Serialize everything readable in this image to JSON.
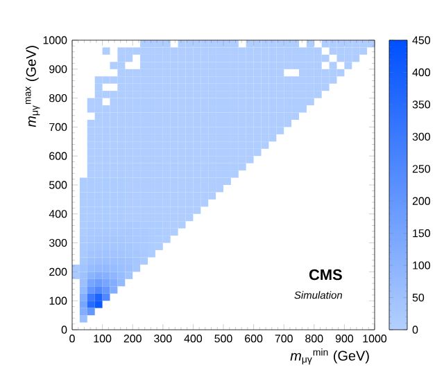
{
  "chart_data": {
    "type": "heatmap",
    "xlabel": "*m*$_{μγ}$$^{min}$ (GeV)",
    "ylabel": "*m*$_{μγ}$$^{max}$ (GeV)",
    "annotations": [
      "CMS",
      "Simulation"
    ],
    "x": [
      12.5,
      37.5,
      62.5,
      87.5,
      112.5,
      137.5,
      162.5,
      187.5,
      212.5,
      237.5,
      262.5,
      287.5,
      312.5,
      337.5,
      362.5,
      387.5,
      412.5,
      437.5,
      462.5,
      487.5,
      512.5,
      537.5,
      562.5,
      587.5,
      612.5,
      637.5,
      662.5,
      687.5,
      712.5,
      737.5,
      762.5,
      787.5,
      812.5,
      837.5,
      862.5,
      887.5,
      912.5,
      937.5,
      962.5,
      987.5
    ],
    "y": [
      987.5,
      962.5,
      937.5,
      912.5,
      887.5,
      862.5,
      837.5,
      812.5,
      787.5,
      762.5,
      737.5,
      712.5,
      687.5,
      662.5,
      637.5,
      612.5,
      587.5,
      562.5,
      537.5,
      512.5,
      487.5,
      462.5,
      437.5,
      412.5,
      387.5,
      362.5,
      337.5,
      312.5,
      287.5,
      262.5,
      237.5,
      212.5,
      187.5,
      162.5,
      137.5,
      112.5,
      87.5,
      62.5,
      37.5
    ],
    "xlim": [
      0,
      1000
    ],
    "ylim": [
      0,
      1000
    ],
    "xticks": [
      0,
      100,
      200,
      300,
      400,
      500,
      600,
      700,
      800,
      900,
      1000
    ],
    "yticks": [
      0,
      100,
      200,
      300,
      400,
      500,
      600,
      700,
      800,
      900,
      1000
    ],
    "clim": [
      0,
      450
    ],
    "cticks": [
      0,
      50,
      100,
      150,
      200,
      250,
      300,
      350,
      400,
      450
    ],
    "cells": [
      [
        null,
        null,
        null,
        null,
        null,
        null,
        null,
        null,
        null,
        10,
        10,
        10,
        10,
        null,
        10,
        10,
        10,
        10,
        10,
        10,
        10,
        10,
        null,
        10,
        10,
        10,
        10,
        10,
        10,
        10,
        null,
        10,
        null,
        10,
        10,
        10,
        10,
        10,
        10,
        10
      ],
      [
        null,
        null,
        null,
        null,
        10,
        null,
        10,
        10,
        10,
        10,
        10,
        10,
        10,
        10,
        10,
        10,
        10,
        10,
        10,
        10,
        10,
        10,
        10,
        10,
        10,
        10,
        10,
        10,
        10,
        10,
        10,
        10,
        10,
        null,
        10,
        10,
        10,
        10,
        10,
        null
      ],
      [
        null,
        null,
        null,
        null,
        null,
        null,
        10,
        10,
        null,
        10,
        10,
        10,
        10,
        10,
        10,
        10,
        10,
        10,
        10,
        10,
        10,
        10,
        10,
        10,
        10,
        10,
        10,
        10,
        10,
        10,
        10,
        10,
        10,
        10,
        null,
        10,
        10,
        10,
        null,
        null
      ],
      [
        null,
        null,
        null,
        null,
        null,
        10,
        10,
        null,
        null,
        10,
        10,
        10,
        10,
        10,
        10,
        10,
        10,
        10,
        10,
        10,
        10,
        10,
        10,
        10,
        10,
        10,
        10,
        10,
        10,
        10,
        10,
        10,
        10,
        null,
        10,
        null,
        10,
        null,
        null,
        null
      ],
      [
        null,
        null,
        null,
        null,
        null,
        null,
        10,
        10,
        10,
        10,
        10,
        10,
        10,
        10,
        10,
        10,
        10,
        10,
        10,
        10,
        10,
        10,
        10,
        10,
        10,
        10,
        10,
        10,
        null,
        null,
        10,
        10,
        10,
        10,
        10,
        10,
        null,
        null,
        null,
        null
      ],
      [
        null,
        null,
        null,
        10,
        10,
        10,
        10,
        10,
        10,
        10,
        10,
        10,
        10,
        10,
        10,
        10,
        10,
        10,
        10,
        10,
        10,
        10,
        10,
        10,
        10,
        10,
        10,
        10,
        10,
        10,
        10,
        10,
        10,
        10,
        10,
        null,
        null,
        null,
        null,
        null
      ],
      [
        null,
        null,
        null,
        10,
        null,
        null,
        10,
        10,
        10,
        10,
        10,
        10,
        10,
        10,
        10,
        10,
        10,
        10,
        10,
        10,
        10,
        10,
        10,
        10,
        10,
        10,
        10,
        10,
        10,
        10,
        10,
        10,
        10,
        10,
        null,
        null,
        null,
        null,
        null,
        null
      ],
      [
        null,
        null,
        null,
        10,
        10,
        10,
        10,
        10,
        10,
        10,
        10,
        10,
        10,
        10,
        10,
        10,
        10,
        10,
        10,
        10,
        10,
        10,
        10,
        10,
        10,
        10,
        10,
        10,
        10,
        10,
        10,
        10,
        10,
        null,
        null,
        null,
        null,
        null,
        null,
        null
      ],
      [
        null,
        null,
        10,
        10,
        null,
        10,
        10,
        10,
        10,
        10,
        10,
        10,
        10,
        10,
        10,
        10,
        10,
        10,
        10,
        10,
        10,
        10,
        10,
        10,
        10,
        10,
        10,
        10,
        10,
        10,
        10,
        10,
        null,
        null,
        null,
        null,
        null,
        null,
        null,
        null
      ],
      [
        null,
        null,
        10,
        10,
        10,
        10,
        10,
        10,
        10,
        10,
        10,
        10,
        10,
        10,
        10,
        10,
        10,
        10,
        10,
        10,
        10,
        10,
        10,
        10,
        10,
        10,
        10,
        10,
        10,
        10,
        10,
        null,
        null,
        null,
        null,
        null,
        null,
        null,
        null,
        null
      ],
      [
        null,
        null,
        null,
        10,
        10,
        10,
        10,
        10,
        10,
        10,
        10,
        10,
        10,
        10,
        10,
        10,
        10,
        10,
        10,
        10,
        10,
        10,
        10,
        10,
        10,
        10,
        10,
        10,
        10,
        10,
        null,
        null,
        null,
        null,
        null,
        null,
        null,
        null,
        null,
        null
      ],
      [
        null,
        null,
        10,
        10,
        10,
        10,
        10,
        10,
        10,
        10,
        10,
        10,
        10,
        10,
        10,
        10,
        10,
        10,
        10,
        10,
        10,
        10,
        10,
        10,
        10,
        10,
        10,
        10,
        10,
        null,
        null,
        null,
        null,
        null,
        null,
        null,
        null,
        null,
        null,
        null
      ],
      [
        null,
        null,
        10,
        10,
        10,
        10,
        10,
        10,
        10,
        10,
        10,
        10,
        10,
        10,
        10,
        10,
        10,
        10,
        10,
        10,
        10,
        10,
        10,
        10,
        10,
        10,
        10,
        10,
        null,
        null,
        null,
        null,
        null,
        null,
        null,
        null,
        null,
        null,
        null,
        null
      ],
      [
        null,
        null,
        10,
        10,
        10,
        10,
        10,
        10,
        10,
        10,
        10,
        10,
        10,
        10,
        10,
        10,
        10,
        10,
        10,
        10,
        10,
        10,
        10,
        10,
        10,
        10,
        10,
        null,
        null,
        null,
        null,
        null,
        null,
        null,
        null,
        null,
        null,
        null,
        null,
        null
      ],
      [
        null,
        null,
        10,
        10,
        10,
        10,
        10,
        10,
        10,
        10,
        10,
        10,
        10,
        10,
        10,
        10,
        10,
        10,
        10,
        10,
        10,
        10,
        10,
        10,
        10,
        10,
        null,
        null,
        null,
        null,
        null,
        null,
        null,
        null,
        null,
        null,
        null,
        null,
        null,
        null
      ],
      [
        null,
        null,
        10,
        10,
        10,
        10,
        10,
        10,
        10,
        10,
        10,
        10,
        10,
        10,
        10,
        10,
        10,
        10,
        10,
        10,
        10,
        10,
        10,
        10,
        10,
        null,
        null,
        null,
        null,
        null,
        null,
        null,
        null,
        null,
        null,
        null,
        null,
        null,
        null,
        null
      ],
      [
        null,
        null,
        10,
        10,
        10,
        10,
        10,
        10,
        10,
        10,
        10,
        10,
        10,
        10,
        10,
        10,
        10,
        10,
        10,
        10,
        10,
        10,
        10,
        10,
        null,
        null,
        null,
        null,
        null,
        null,
        null,
        null,
        null,
        null,
        null,
        null,
        null,
        null,
        null,
        null
      ],
      [
        null,
        null,
        10,
        10,
        10,
        10,
        10,
        10,
        10,
        10,
        10,
        10,
        10,
        10,
        10,
        10,
        10,
        10,
        10,
        10,
        10,
        10,
        10,
        null,
        null,
        null,
        null,
        null,
        null,
        null,
        null,
        null,
        null,
        null,
        null,
        null,
        null,
        null,
        null,
        null
      ],
      [
        null,
        null,
        10,
        10,
        10,
        10,
        10,
        10,
        10,
        10,
        10,
        10,
        10,
        10,
        10,
        10,
        10,
        10,
        10,
        10,
        10,
        10,
        null,
        null,
        null,
        null,
        null,
        null,
        null,
        null,
        null,
        null,
        null,
        null,
        null,
        null,
        null,
        null,
        null,
        null
      ],
      [
        null,
        15,
        15,
        15,
        15,
        15,
        15,
        10,
        10,
        10,
        10,
        10,
        10,
        10,
        10,
        10,
        10,
        10,
        10,
        10,
        10,
        null,
        null,
        null,
        null,
        null,
        null,
        null,
        null,
        null,
        null,
        null,
        null,
        null,
        null,
        null,
        null,
        null,
        null,
        null
      ],
      [
        null,
        15,
        15,
        15,
        15,
        15,
        15,
        10,
        10,
        10,
        10,
        10,
        10,
        10,
        10,
        10,
        10,
        10,
        10,
        10,
        null,
        null,
        null,
        null,
        null,
        null,
        null,
        null,
        null,
        null,
        null,
        null,
        null,
        null,
        null,
        null,
        null,
        null,
        null,
        null
      ],
      [
        null,
        15,
        15,
        15,
        15,
        15,
        15,
        10,
        10,
        10,
        10,
        10,
        10,
        10,
        10,
        10,
        10,
        10,
        10,
        null,
        null,
        null,
        null,
        null,
        null,
        null,
        null,
        null,
        null,
        null,
        null,
        null,
        null,
        null,
        null,
        null,
        null,
        null,
        null,
        null
      ],
      [
        null,
        15,
        15,
        15,
        15,
        15,
        15,
        10,
        10,
        10,
        10,
        10,
        10,
        10,
        10,
        10,
        10,
        10,
        null,
        null,
        null,
        null,
        null,
        null,
        null,
        null,
        null,
        null,
        null,
        null,
        null,
        null,
        null,
        null,
        null,
        null,
        null,
        null,
        null,
        null
      ],
      [
        null,
        15,
        15,
        15,
        15,
        15,
        15,
        10,
        10,
        10,
        10,
        10,
        10,
        10,
        10,
        10,
        10,
        null,
        null,
        null,
        null,
        null,
        null,
        null,
        null,
        null,
        null,
        null,
        null,
        null,
        null,
        null,
        null,
        null,
        null,
        null,
        null,
        null,
        null,
        null
      ],
      [
        null,
        15,
        15,
        15,
        15,
        15,
        15,
        10,
        10,
        10,
        10,
        10,
        10,
        10,
        10,
        10,
        null,
        null,
        null,
        null,
        null,
        null,
        null,
        null,
        null,
        null,
        null,
        null,
        null,
        null,
        null,
        null,
        null,
        null,
        null,
        null,
        null,
        null,
        null,
        null
      ],
      [
        null,
        15,
        20,
        20,
        20,
        20,
        20,
        20,
        20,
        15,
        15,
        15,
        10,
        10,
        10,
        null,
        null,
        null,
        null,
        null,
        null,
        null,
        null,
        null,
        null,
        null,
        null,
        null,
        null,
        null,
        null,
        null,
        null,
        null,
        null,
        null,
        null,
        null,
        null,
        null
      ],
      [
        null,
        15,
        25,
        25,
        25,
        25,
        25,
        25,
        20,
        20,
        15,
        15,
        10,
        10,
        null,
        null,
        null,
        null,
        null,
        null,
        null,
        null,
        null,
        null,
        null,
        null,
        null,
        null,
        null,
        null,
        null,
        null,
        null,
        null,
        null,
        null,
        null,
        null,
        null,
        null
      ],
      [
        null,
        20,
        25,
        30,
        30,
        30,
        30,
        25,
        25,
        20,
        15,
        10,
        10,
        null,
        null,
        null,
        null,
        null,
        null,
        null,
        null,
        null,
        null,
        null,
        null,
        null,
        null,
        null,
        null,
        null,
        null,
        null,
        null,
        null,
        null,
        null,
        null,
        null,
        null,
        null
      ],
      [
        null,
        20,
        30,
        35,
        35,
        35,
        35,
        30,
        25,
        20,
        15,
        10,
        null,
        null,
        null,
        null,
        null,
        null,
        null,
        null,
        null,
        null,
        null,
        null,
        null,
        null,
        null,
        null,
        null,
        null,
        null,
        null,
        null,
        null,
        null,
        null,
        null,
        null,
        null,
        null
      ],
      [
        null,
        25,
        40,
        45,
        45,
        45,
        40,
        35,
        30,
        25,
        15,
        null,
        null,
        null,
        null,
        null,
        null,
        null,
        null,
        null,
        null,
        null,
        null,
        null,
        null,
        null,
        null,
        null,
        null,
        null,
        null,
        null,
        null,
        null,
        null,
        null,
        null,
        null,
        null,
        null
      ],
      [
        null,
        30,
        50,
        60,
        60,
        55,
        50,
        45,
        35,
        20,
        null,
        null,
        null,
        null,
        null,
        null,
        null,
        null,
        null,
        null,
        null,
        null,
        null,
        null,
        null,
        null,
        null,
        null,
        null,
        null,
        null,
        null,
        null,
        null,
        null,
        null,
        null,
        null,
        null,
        null
      ],
      [
        20,
        40,
        70,
        80,
        80,
        70,
        60,
        50,
        30,
        null,
        null,
        null,
        null,
        null,
        null,
        null,
        null,
        null,
        null,
        null,
        null,
        null,
        null,
        null,
        null,
        null,
        null,
        null,
        null,
        null,
        null,
        null,
        null,
        null,
        null,
        null,
        null,
        null,
        null,
        null
      ],
      [
        20,
        50,
        100,
        120,
        110,
        90,
        70,
        40,
        null,
        null,
        null,
        null,
        null,
        null,
        null,
        null,
        null,
        null,
        null,
        null,
        null,
        null,
        null,
        null,
        null,
        null,
        null,
        null,
        null,
        null,
        null,
        null,
        null,
        null,
        null,
        null,
        null,
        null,
        null,
        null
      ],
      [
        null,
        60,
        150,
        180,
        150,
        120,
        80,
        null,
        null,
        null,
        null,
        null,
        null,
        null,
        null,
        null,
        null,
        null,
        null,
        null,
        null,
        null,
        null,
        null,
        null,
        null,
        null,
        null,
        null,
        null,
        null,
        null,
        null,
        null,
        null,
        null,
        null,
        null,
        null,
        null
      ],
      [
        null,
        80,
        200,
        250,
        200,
        120,
        null,
        null,
        null,
        null,
        null,
        null,
        null,
        null,
        null,
        null,
        null,
        null,
        null,
        null,
        null,
        null,
        null,
        null,
        null,
        null,
        null,
        null,
        null,
        null,
        null,
        null,
        null,
        null,
        null,
        null,
        null,
        null,
        null,
        null
      ],
      [
        null,
        120,
        300,
        380,
        250,
        null,
        null,
        null,
        null,
        null,
        null,
        null,
        null,
        null,
        null,
        null,
        null,
        null,
        null,
        null,
        null,
        null,
        null,
        null,
        null,
        null,
        null,
        null,
        null,
        null,
        null,
        null,
        null,
        null,
        null,
        null,
        null,
        null,
        null,
        null
      ],
      [
        null,
        150,
        350,
        420,
        null,
        null,
        null,
        null,
        null,
        null,
        null,
        null,
        null,
        null,
        null,
        null,
        null,
        null,
        null,
        null,
        null,
        null,
        null,
        null,
        null,
        null,
        null,
        null,
        null,
        null,
        null,
        null,
        null,
        null,
        null,
        null,
        null,
        null,
        null,
        null
      ],
      [
        null,
        120,
        200,
        null,
        null,
        null,
        null,
        null,
        null,
        null,
        null,
        null,
        null,
        null,
        null,
        null,
        null,
        null,
        null,
        null,
        null,
        null,
        null,
        null,
        null,
        null,
        null,
        null,
        null,
        null,
        null,
        null,
        null,
        null,
        null,
        null,
        null,
        null,
        null,
        null
      ],
      [
        null,
        60,
        null,
        null,
        null,
        null,
        null,
        null,
        null,
        null,
        null,
        null,
        null,
        null,
        null,
        null,
        null,
        null,
        null,
        null,
        null,
        null,
        null,
        null,
        null,
        null,
        null,
        null,
        null,
        null,
        null,
        null,
        null,
        null,
        null,
        null,
        null,
        null,
        null,
        null
      ]
    ]
  }
}
